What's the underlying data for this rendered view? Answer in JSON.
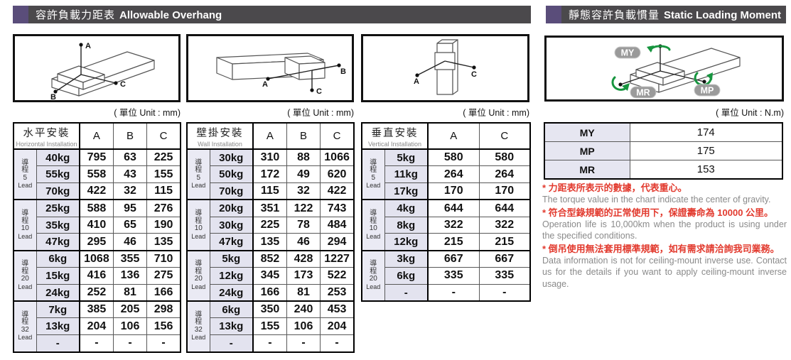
{
  "sections": {
    "overhang": {
      "title_zh": "容許負載力距表",
      "title_en": "Allowable Overhang",
      "unit": "( 單位 Unit : mm)"
    },
    "moment": {
      "title_zh": "靜態容許負載慣量",
      "title_en": "Static Loading Moment",
      "unit": "( 單位 Unit : N.m)"
    }
  },
  "diagrams": {
    "horizontal": {
      "a": "A",
      "b": "B",
      "c": "C"
    },
    "wall": {
      "a": "A",
      "b": "B",
      "c": "C"
    },
    "vertical": {
      "a": "A",
      "c": "C"
    },
    "moment": {
      "my": "MY",
      "mp": "MP",
      "mr": "MR"
    }
  },
  "overhang_tables": [
    {
      "name_zh": "水平安裝",
      "name_en": "Horizontal Installation",
      "columns": [
        "A",
        "B",
        "C"
      ],
      "groups": [
        {
          "lead_zh": "導程",
          "lead_num": "5",
          "lead_en": "Lead",
          "rows": [
            [
              "40kg",
              "795",
              "63",
              "225"
            ],
            [
              "55kg",
              "558",
              "43",
              "155"
            ],
            [
              "70kg",
              "422",
              "32",
              "115"
            ]
          ]
        },
        {
          "lead_zh": "導程",
          "lead_num": "10",
          "lead_en": "Lead",
          "rows": [
            [
              "25kg",
              "588",
              "95",
              "276"
            ],
            [
              "35kg",
              "410",
              "65",
              "190"
            ],
            [
              "47kg",
              "295",
              "46",
              "135"
            ]
          ]
        },
        {
          "lead_zh": "導程",
          "lead_num": "20",
          "lead_en": "Lead",
          "rows": [
            [
              "6kg",
              "1068",
              "355",
              "710"
            ],
            [
              "15kg",
              "416",
              "136",
              "275"
            ],
            [
              "24kg",
              "252",
              "81",
              "166"
            ]
          ]
        },
        {
          "lead_zh": "導程",
          "lead_num": "32",
          "lead_en": "Lead",
          "rows": [
            [
              "7kg",
              "385",
              "205",
              "298"
            ],
            [
              "13kg",
              "204",
              "106",
              "156"
            ],
            [
              "-",
              "-",
              "-",
              "-"
            ]
          ]
        }
      ]
    },
    {
      "name_zh": "壁掛安裝",
      "name_en": "Wall Installation",
      "columns": [
        "A",
        "B",
        "C"
      ],
      "groups": [
        {
          "lead_zh": "導程",
          "lead_num": "5",
          "lead_en": "Lead",
          "rows": [
            [
              "30kg",
              "310",
              "88",
              "1066"
            ],
            [
              "50kg",
              "172",
              "49",
              "620"
            ],
            [
              "70kg",
              "115",
              "32",
              "422"
            ]
          ]
        },
        {
          "lead_zh": "導程",
          "lead_num": "10",
          "lead_en": "Lead",
          "rows": [
            [
              "20kg",
              "351",
              "122",
              "743"
            ],
            [
              "30kg",
              "225",
              "78",
              "484"
            ],
            [
              "47kg",
              "135",
              "46",
              "294"
            ]
          ]
        },
        {
          "lead_zh": "導程",
          "lead_num": "20",
          "lead_en": "Lead",
          "rows": [
            [
              "5kg",
              "852",
              "428",
              "1227"
            ],
            [
              "12kg",
              "345",
              "173",
              "522"
            ],
            [
              "24kg",
              "166",
              "81",
              "253"
            ]
          ]
        },
        {
          "lead_zh": "導程",
          "lead_num": "32",
          "lead_en": "Lead",
          "rows": [
            [
              "6kg",
              "350",
              "240",
              "453"
            ],
            [
              "13kg",
              "155",
              "106",
              "204"
            ],
            [
              "-",
              "-",
              "-",
              "-"
            ]
          ]
        }
      ]
    },
    {
      "name_zh": "垂直安裝",
      "name_en": "Vertical Installation",
      "columns": [
        "A",
        "C"
      ],
      "groups": [
        {
          "lead_zh": "導程",
          "lead_num": "5",
          "lead_en": "Lead",
          "rows": [
            [
              "5kg",
              "580",
              "580"
            ],
            [
              "11kg",
              "264",
              "264"
            ],
            [
              "17kg",
              "170",
              "170"
            ]
          ]
        },
        {
          "lead_zh": "導程",
          "lead_num": "10",
          "lead_en": "Lead",
          "rows": [
            [
              "4kg",
              "644",
              "644"
            ],
            [
              "8kg",
              "322",
              "322"
            ],
            [
              "12kg",
              "215",
              "215"
            ]
          ]
        },
        {
          "lead_zh": "導程",
          "lead_num": "20",
          "lead_en": "Lead",
          "rows": [
            [
              "3kg",
              "667",
              "667"
            ],
            [
              "6kg",
              "335",
              "335"
            ],
            [
              "-",
              "-",
              "-"
            ]
          ]
        }
      ]
    }
  ],
  "moment_table": {
    "rows": [
      [
        "MY",
        "174"
      ],
      [
        "MP",
        "175"
      ],
      [
        "MR",
        "153"
      ]
    ]
  },
  "notes": [
    {
      "zh": "* 力距表所表示的數據，代表重心。",
      "en": "The torque value in the chart indicate the center of gravity."
    },
    {
      "zh": "* 符合型錄規範的正常使用下，保證壽命為 10000 公里。",
      "en": "Operation life is 10,000km when the product is using under the specified conditions."
    },
    {
      "zh": "* 倒吊使用無法套用標準規範，如有需求請洽詢我司業務。",
      "en": "Data information is not for ceiling-mount inverse use. Contact us for the details if you want to apply ceiling-mount inverse usage."
    }
  ],
  "colors": {
    "header_bar": "#4b494c",
    "accent_purple": "#5a4d7a",
    "cell_lavender": "#e6e6f1",
    "note_red": "#e23a2e",
    "arrow_green": "#17953f"
  }
}
